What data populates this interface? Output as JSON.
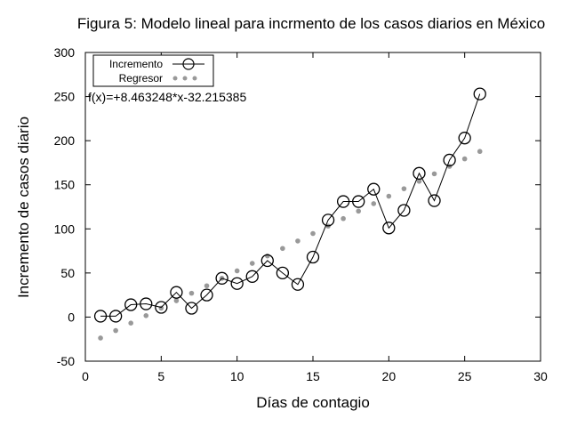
{
  "chart_data": {
    "type": "line",
    "title": "Figura 5: Modelo lineal para incrmento de los casos diarios en México",
    "xlabel": "Días de contagio",
    "ylabel": "Incremento de casos diario",
    "xlim": [
      0,
      30
    ],
    "ylim": [
      -50,
      300
    ],
    "xticks": [
      0,
      5,
      10,
      15,
      20,
      25,
      30
    ],
    "yticks": [
      -50,
      0,
      50,
      100,
      150,
      200,
      250,
      300
    ],
    "grid": false,
    "legend_position": "top-left",
    "annotation": "f(x)=+8.463248*x-32.215385",
    "regression": {
      "slope": 8.463248,
      "intercept": -32.215385
    },
    "series": [
      {
        "name": "Incremento",
        "style": "line-with-open-circles",
        "color": "#000000",
        "x": [
          1,
          2,
          3,
          4,
          5,
          6,
          7,
          8,
          9,
          10,
          11,
          12,
          13,
          14,
          15,
          16,
          17,
          18,
          19,
          20,
          21,
          22,
          23,
          24,
          25,
          26
        ],
        "y": [
          1,
          1,
          14,
          15,
          11,
          28,
          10,
          25,
          44,
          38,
          46,
          64,
          50,
          37,
          68,
          110,
          131,
          131,
          145,
          101,
          121,
          163,
          132,
          178,
          203,
          253
        ]
      },
      {
        "name": "Regresor",
        "style": "points",
        "color": "#999999",
        "x": [
          1,
          2,
          3,
          4,
          5,
          6,
          7,
          8,
          9,
          10,
          11,
          12,
          13,
          14,
          15,
          16,
          17,
          18,
          19,
          20,
          21,
          22,
          23,
          24,
          25,
          26
        ]
      }
    ]
  }
}
